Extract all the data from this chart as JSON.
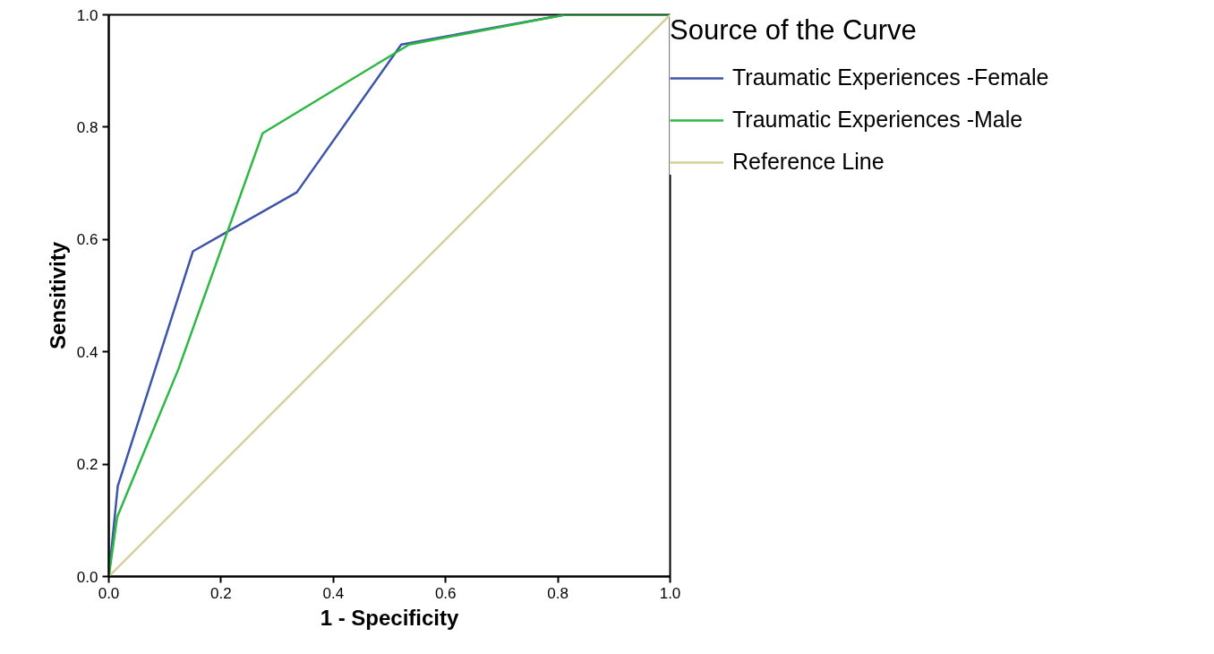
{
  "chart_data": {
    "type": "line",
    "xlabel": "1 - Specificity",
    "ylabel": "Sensitivity",
    "legend_title": "Source of the Curve",
    "series": [
      {
        "name": "Traumatic Experiences -Female",
        "color": "#3d55a8",
        "x": [
          0,
          0.016,
          0.15,
          0.335,
          0.521,
          0.812
        ],
        "values": [
          0,
          0.161,
          0.579,
          0.684,
          0.947,
          1
        ]
      },
      {
        "name": "Traumatic Experiences -Male",
        "color": "#2db843",
        "x": [
          0,
          0.015,
          0.124,
          0.274,
          0.535,
          0.812,
          1
        ],
        "values": [
          0,
          0.106,
          0.369,
          0.789,
          0.947,
          1,
          1
        ]
      },
      {
        "name": "Reference Line",
        "color": "#d4cf9b",
        "x": [
          0,
          1
        ],
        "values": [
          0,
          1
        ]
      }
    ],
    "xlim": [
      0,
      1
    ],
    "ylim": [
      0,
      1
    ],
    "xticks": [
      {
        "value": 0,
        "label": "0.0"
      },
      0.2,
      0.4,
      0.6,
      0.8,
      {
        "value": 1,
        "label": "1.0"
      }
    ],
    "yticks": [
      {
        "value": 0,
        "label": "0.0"
      },
      0.2,
      0.4,
      0.6,
      0.8,
      {
        "value": 1,
        "label": "1.0"
      }
    ],
    "grid": false,
    "legend": "top right",
    "marker": "none",
    "line_style": "solid"
  }
}
